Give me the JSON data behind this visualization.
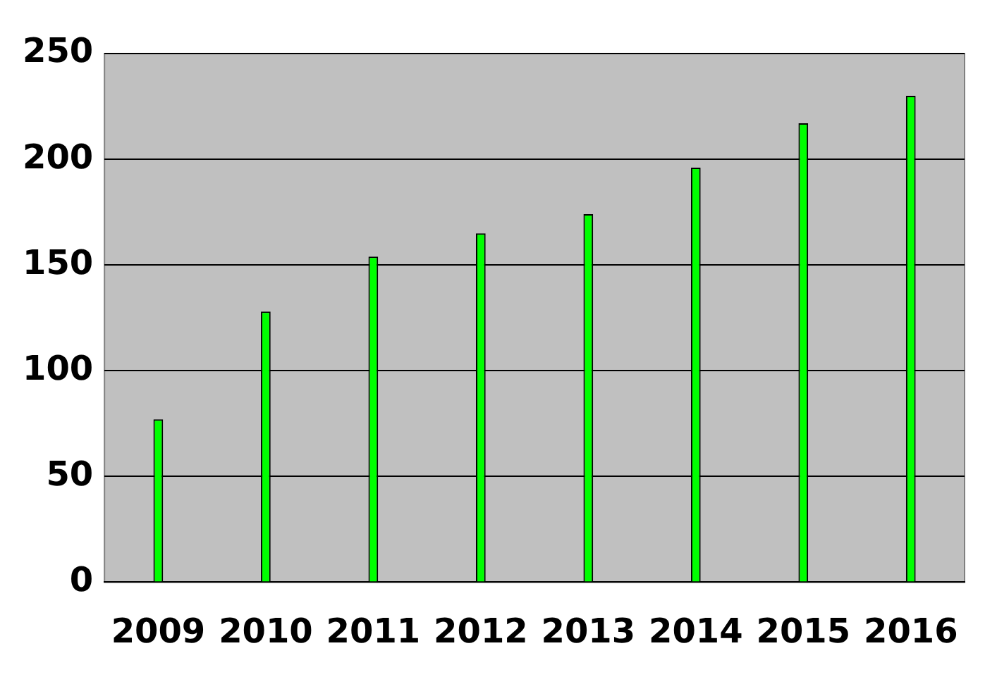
{
  "chart_data": {
    "type": "bar",
    "categories": [
      "2009",
      "2010",
      "2011",
      "2012",
      "2013",
      "2014",
      "2015",
      "2016"
    ],
    "values": [
      77,
      128,
      154,
      165,
      174,
      196,
      217,
      230
    ],
    "color": "#00ff00",
    "ylim": [
      0,
      250
    ],
    "yticks": [
      0,
      50,
      100,
      150,
      200,
      250
    ],
    "grid": "y",
    "legend": false
  }
}
